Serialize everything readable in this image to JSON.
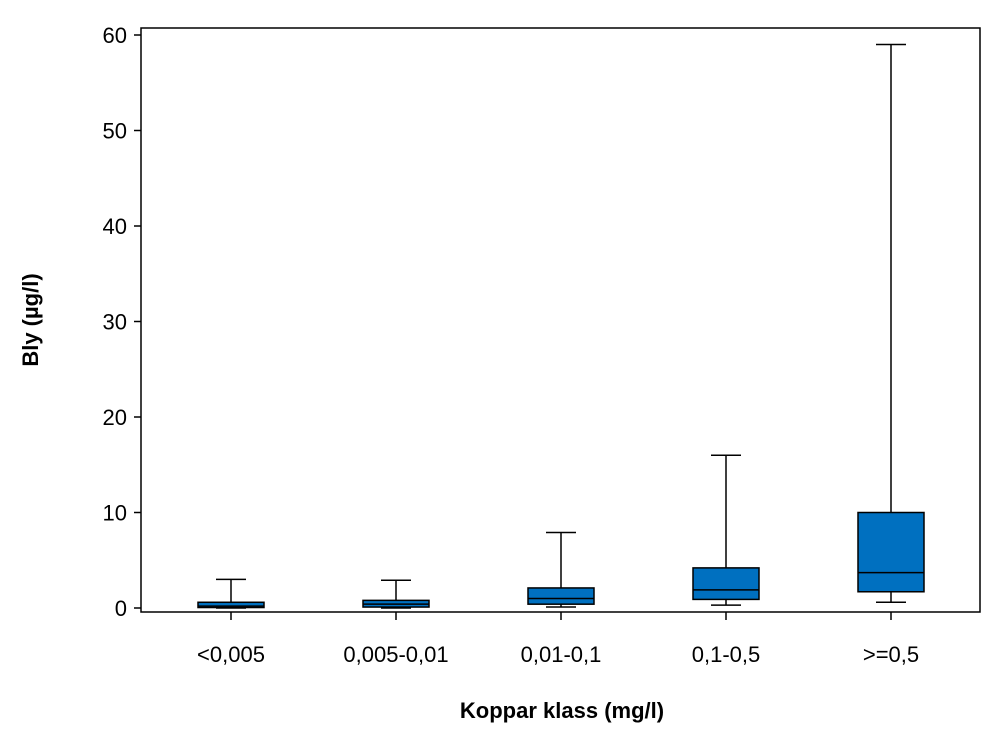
{
  "chart_data": {
    "type": "boxplot",
    "title": "",
    "xlabel": "Koppar klass (mg/l)",
    "ylabel": "Bly (µg/l)",
    "ylim": [
      0,
      60
    ],
    "yticks": [
      0,
      10,
      20,
      30,
      40,
      50,
      60
    ],
    "grid": false,
    "box_color": "#0070C0",
    "categories": [
      "<0,005",
      "0,005-0,01",
      "0,01-0,1",
      "0,1-0,5",
      ">=0,5"
    ],
    "boxes": [
      {
        "whisker_low": 0.0,
        "q1": 0.05,
        "median": 0.2,
        "q3": 0.6,
        "whisker_high": 3.0
      },
      {
        "whisker_low": 0.0,
        "q1": 0.1,
        "median": 0.4,
        "q3": 0.8,
        "whisker_high": 2.9
      },
      {
        "whisker_low": 0.1,
        "q1": 0.4,
        "median": 1.0,
        "q3": 2.1,
        "whisker_high": 7.9
      },
      {
        "whisker_low": 0.3,
        "q1": 0.9,
        "median": 1.9,
        "q3": 4.2,
        "whisker_high": 16.0
      },
      {
        "whisker_low": 0.6,
        "q1": 1.7,
        "median": 3.7,
        "q3": 10.0,
        "whisker_high": 59.0
      }
    ]
  }
}
